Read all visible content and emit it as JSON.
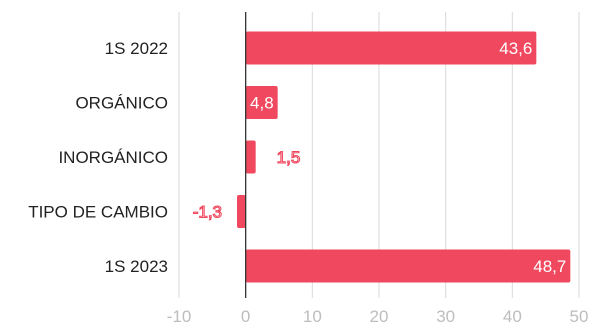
{
  "chart_data": {
    "type": "bar",
    "orientation": "horizontal",
    "categories": [
      "1S 2022",
      "ORGÁNICO",
      "INORGÁNICO",
      "TIPO DE CAMBIO",
      "1S 2023"
    ],
    "values": [
      43.6,
      4.8,
      1.5,
      -1.3,
      48.7
    ],
    "value_labels": [
      "43,6",
      "4,8",
      "1,5",
      "-1,3",
      "48,7"
    ],
    "xlim": [
      -10,
      50
    ],
    "x_ticks": [
      -10,
      0,
      10,
      20,
      30,
      40,
      50
    ],
    "x_tick_labels": [
      "-10",
      "0",
      "10",
      "20",
      "30",
      "40",
      "50"
    ],
    "grid": true,
    "bar_color": "#f0485f",
    "zero_line_color": "#333333",
    "grid_color": "#d9d9d9",
    "title": "",
    "xlabel": "",
    "ylabel": ""
  }
}
